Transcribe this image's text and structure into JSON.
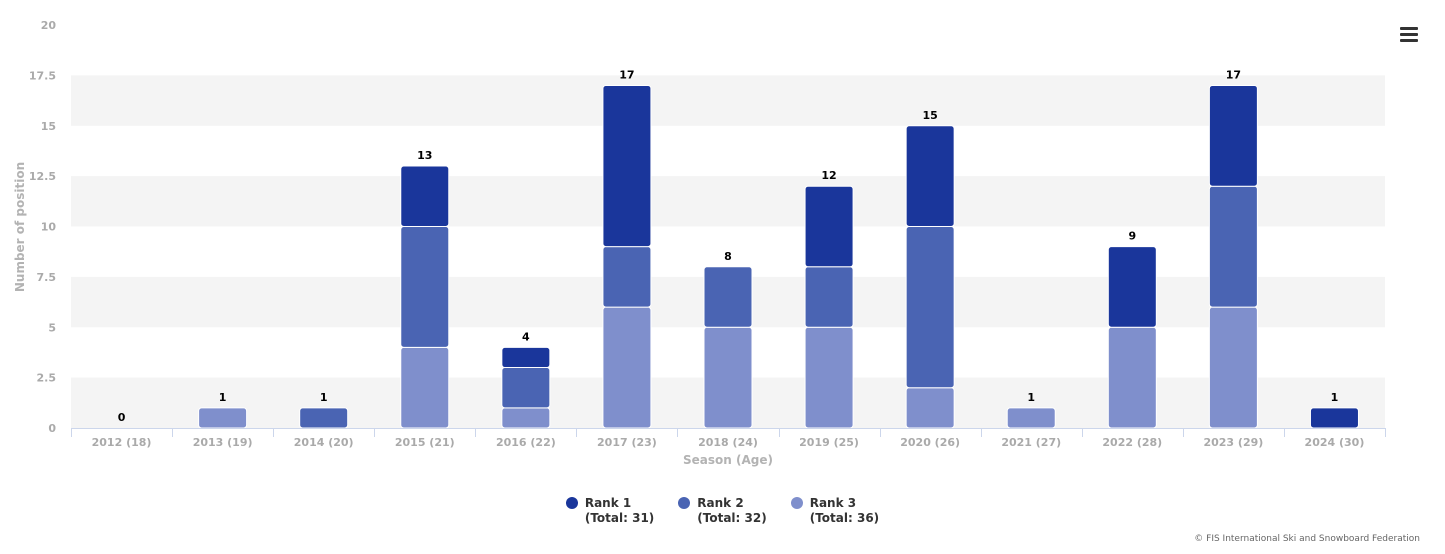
{
  "menu": {
    "icon": "hamburger-menu-icon"
  },
  "chart_data": {
    "type": "bar",
    "stacked": true,
    "categories": [
      "2012 (18)",
      "2013 (19)",
      "2014 (20)",
      "2015 (21)",
      "2016 (22)",
      "2017 (23)",
      "2018 (24)",
      "2019 (25)",
      "2020 (26)",
      "2021 (27)",
      "2022 (28)",
      "2023 (29)",
      "2024 (30)"
    ],
    "series": [
      {
        "name": "Rank 1",
        "legend_total": "(Total: 31)",
        "color": "#1a369b",
        "values": [
          0,
          0,
          0,
          3,
          1,
          8,
          0,
          4,
          5,
          0,
          4,
          5,
          1
        ]
      },
      {
        "name": "Rank 2",
        "legend_total": "(Total: 32)",
        "color": "#4a64b3",
        "values": [
          0,
          0,
          1,
          6,
          2,
          3,
          3,
          3,
          8,
          0,
          0,
          6,
          0
        ]
      },
      {
        "name": "Rank 3",
        "legend_total": "(Total: 36)",
        "color": "#7f8fcc",
        "values": [
          0,
          1,
          0,
          4,
          1,
          6,
          5,
          5,
          2,
          1,
          5,
          6,
          0
        ]
      }
    ],
    "totals": [
      0,
      1,
      1,
      13,
      4,
      17,
      8,
      12,
      15,
      1,
      9,
      17,
      1
    ],
    "xlabel": "Season (Age)",
    "ylabel": "Number of position",
    "ylim": [
      0,
      20
    ],
    "yticks": [
      "0",
      "2.5",
      "5",
      "7.5",
      "10",
      "12.5",
      "15",
      "17.5",
      "20"
    ],
    "ytick_values": [
      0,
      2.5,
      5,
      7.5,
      10,
      12.5,
      15,
      17.5,
      20
    ],
    "plot_band_color": "#f4f4f4",
    "legend_position": "bottom-center"
  },
  "credits": "© FIS International Ski and Snowboard Federation"
}
